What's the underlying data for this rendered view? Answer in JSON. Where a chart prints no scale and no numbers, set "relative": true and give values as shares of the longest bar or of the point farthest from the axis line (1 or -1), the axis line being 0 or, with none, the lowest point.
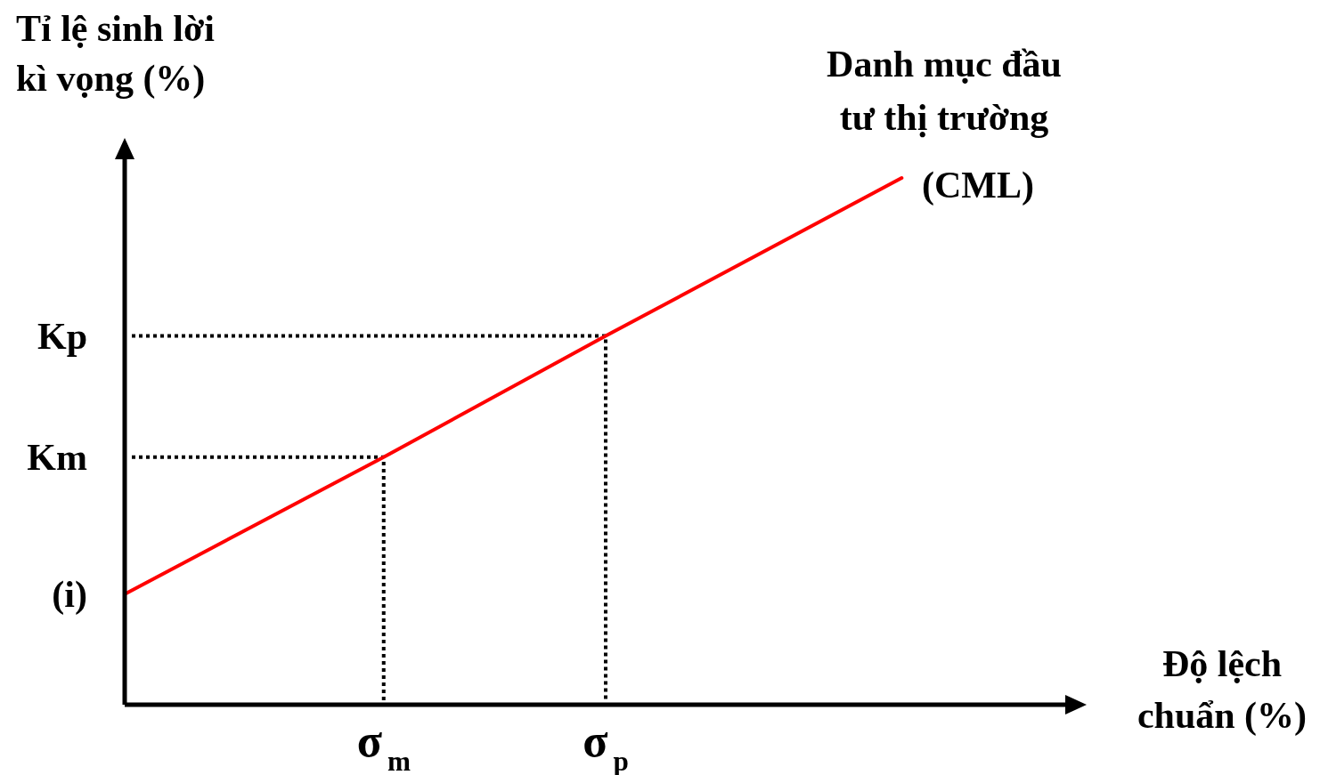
{
  "chart_data": {
    "type": "line",
    "relative": true,
    "xlabel": "Độ lệch chuẩn (%)",
    "ylabel": "Tỉ lệ sinh lời kì vọng (%)",
    "categories": [
      null,
      null,
      null,
      null,
      null,
      null,
      null,
      "σ$_{m}$",
      null,
      null,
      null,
      null,
      null,
      "σ$_{p}$",
      null,
      null,
      null,
      null,
      null,
      null,
      null,
      null,
      null,
      null,
      null,
      null,
      null
    ],
    "series": [
      {
        "name": "Danh mục đầu tư thị trường (CML)",
        "color": "#ff0000",
        "values": [
          0.21,
          null,
          null,
          null,
          null,
          null,
          null,
          0.47,
          null,
          null,
          null,
          null,
          null,
          0.7,
          null,
          null,
          null,
          null,
          null,
          null,
          null,
          1,
          null,
          null,
          null,
          null,
          null
        ]
      }
    ],
    "annotations": [
      "(i)",
      "Km",
      "Kp"
    ],
    "marker": "none",
    "line_style": "solid",
    "legend": false
  }
}
